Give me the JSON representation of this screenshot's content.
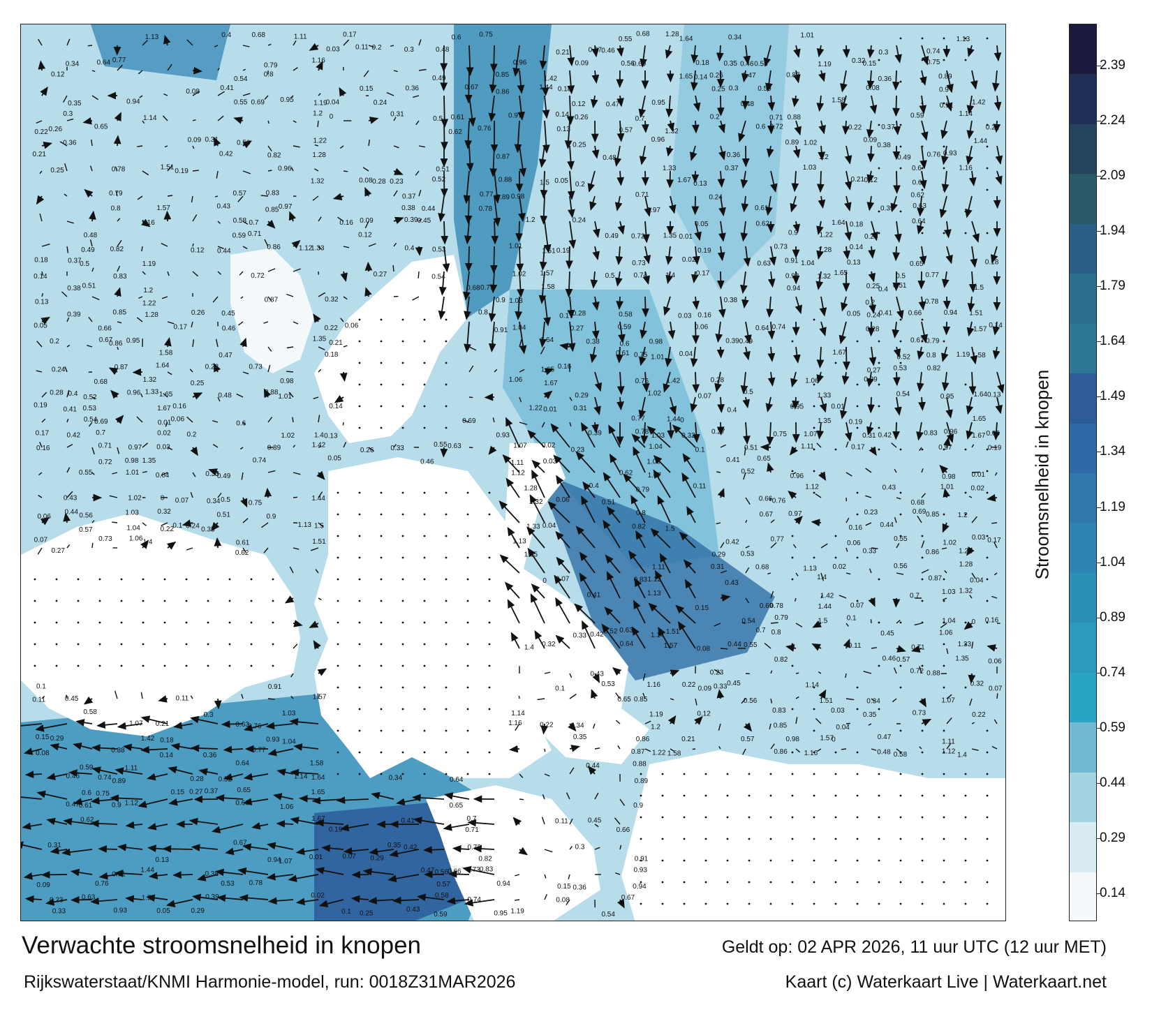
{
  "map": {
    "title": "Verwachte stroomsnelheid in knopen",
    "subtitle": "Rijkswaterstaat/KNMI Harmonie-model, run: 0018Z31MAR2026",
    "valid_time": "Geldt op: 02 APR 2026, 11 uur UTC (12 uur MET)",
    "credit": "Kaart (c) Waterkaart Live | Waterkaart.net",
    "colorbar_label": "Stroomsnelheid in knopen",
    "colorbar_ticks": [
      "2.39",
      "2.24",
      "2.09",
      "1.94",
      "1.79",
      "1.64",
      "1.49",
      "1.34",
      "1.19",
      "1.04",
      "0.89",
      "0.74",
      "0.59",
      "0.44",
      "0.29",
      "0.14"
    ],
    "colorbar_colors": [
      "#1c1a3c",
      "#1f2f56",
      "#24445f",
      "#2a5a6a",
      "#2c5f88",
      "#2f6f8e",
      "#2d7797",
      "#2e5b9a",
      "#2f69a6",
      "#2e78ad",
      "#2e85b3",
      "#2c8fb6",
      "#2a9bbd",
      "#2aa4c5",
      "#72b9d4",
      "#a6d3e2",
      "#d9ebf3",
      "#f4f9fc"
    ],
    "land_color": "#ffffff",
    "sea_color": "#9dcde0",
    "arrow_color": "#111111",
    "speed_labels": [
      "0.22",
      "0.21",
      "0.18",
      "0.14",
      "0.13",
      "0.05",
      "0.19",
      "0.17",
      "0.16",
      "0.06",
      "0.07",
      "0.1",
      "0.11",
      "0.15",
      "0.08",
      "0.09",
      "0.12",
      "0.26",
      "0.25",
      "0.2",
      "0.24",
      "0.28",
      "0.27",
      "0.29",
      "0.31",
      "0.23",
      "0.33",
      "0.34",
      "0.35",
      "0.3",
      "0.36",
      "0.37",
      "0.38",
      "0.39",
      "0.4",
      "0.41",
      "0.42",
      "0.43",
      "0.44",
      "0.45",
      "0.46",
      "0.47",
      "0.48",
      "0.49",
      "0.5",
      "0.51",
      "0.52",
      "0.53",
      "0.54",
      "0.55",
      "0.56",
      "0.57",
      "0.58",
      "0.59",
      "0.6",
      "0.61",
      "0.62",
      "0.63",
      "0.64",
      "0.65",
      "0.66",
      "0.67",
      "0.68",
      "0.69",
      "0.7",
      "0.71",
      "0.72",
      "0.73",
      "0.74",
      "0.75",
      "0.76",
      "0.77",
      "0.78",
      "0.79",
      "0.8",
      "0.82",
      "0.83",
      "0.85",
      "0.86",
      "0.87",
      "0.88",
      "0.89",
      "0.9",
      "0.91",
      "0.93",
      "0.94",
      "0.95",
      "0.96",
      "0.97",
      "0.98",
      "1.01",
      "1.02",
      "1.03",
      "1.04",
      "1.06",
      "1.07",
      "1.11",
      "1.12",
      "1.13",
      "1.14",
      "1.16",
      "1.19",
      "1.2",
      "1.22",
      "1.28",
      "1.32",
      "1.33",
      "1.35",
      "1.4",
      "1.42",
      "1.44",
      "1.5",
      "1.51",
      "1.57",
      "1.58",
      "1.64",
      "1.65",
      "1.67",
      "0.01",
      "0.02",
      "0.03",
      "0.04",
      "0",
      "0.32"
    ]
  }
}
